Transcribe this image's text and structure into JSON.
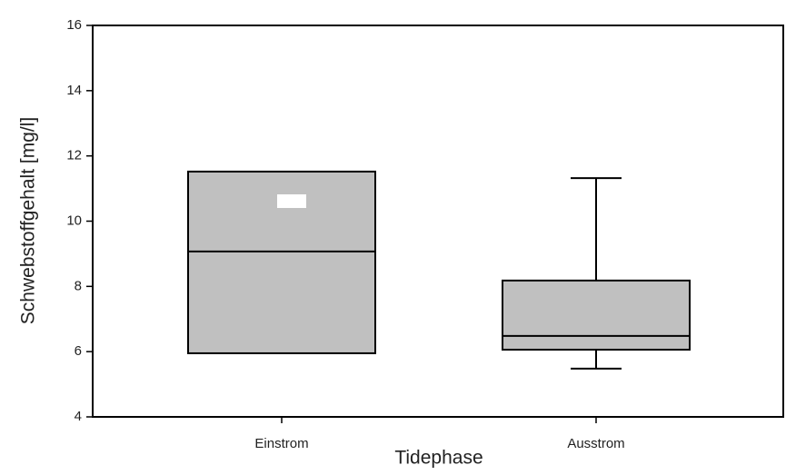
{
  "chart_data": {
    "type": "box",
    "x_label": "Tidephase",
    "y_label": "Schwebstoffgehalt [mg/l]",
    "categories": [
      "Einstrom",
      "Ausstrom"
    ],
    "boxes": [
      {
        "min": null,
        "q1": 5.95,
        "median": 9.07,
        "q3": 11.52,
        "max": null
      },
      {
        "min": 5.48,
        "q1": 6.06,
        "median": 6.48,
        "q3": 8.18,
        "max": 11.32
      }
    ],
    "color": "#c0c0c0",
    "ylim": [
      4,
      16
    ],
    "yticks": [
      4,
      6,
      8,
      10,
      12,
      14,
      16
    ],
    "grid": false
  }
}
